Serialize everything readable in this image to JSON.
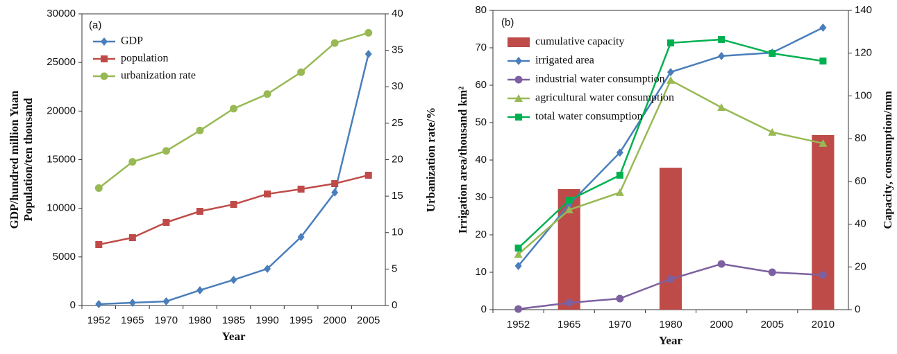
{
  "chart_data": [
    {
      "type": "line",
      "annotation": "(a)",
      "x_label": "Year",
      "y_label": [
        "GDP/hundred million Yuan",
        "Population/ten thousand"
      ],
      "y2_label": "Urbanization rate/%",
      "categories": [
        "1952",
        "1965",
        "1970",
        "1980",
        "1985",
        "1990",
        "1995",
        "2000",
        "2005"
      ],
      "ylim": [
        0,
        30000
      ],
      "yticks": [
        0,
        5000,
        10000,
        15000,
        20000,
        25000,
        30000
      ],
      "y2lim": [
        0,
        40
      ],
      "y2ticks": [
        0,
        5,
        10,
        15,
        20,
        25,
        30,
        35,
        40
      ],
      "legend": "upper-left",
      "series": [
        {
          "name": "GDP",
          "color": "#4a7ebb",
          "marker": "diamond",
          "values": [
            140,
            285,
            430,
            1570,
            2640,
            3780,
            7050,
            11620,
            25870
          ]
        },
        {
          "name": "population",
          "color": "#be4b48",
          "marker": "square",
          "values": [
            6270,
            6980,
            8550,
            9690,
            10400,
            11470,
            11970,
            12540,
            13400
          ]
        },
        {
          "name": "urbanization rate",
          "color": "#98b954",
          "marker": "circle",
          "axis": "y2",
          "values": [
            16.1,
            19.7,
            21.2,
            24,
            27,
            29,
            32,
            36,
            37.4
          ]
        }
      ]
    },
    {
      "type": "combo",
      "annotation": "(b)",
      "x_label": "Year",
      "y_label": [
        "Irrigation area/thousand km²"
      ],
      "y2_label": "Capacity, consumption/mm",
      "categories": [
        "1952",
        "1965",
        "1970",
        "1980",
        "2000",
        "2005",
        "2010"
      ],
      "ylim": [
        0,
        80
      ],
      "yticks": [
        0,
        10,
        20,
        30,
        40,
        50,
        60,
        70,
        80
      ],
      "y2lim": [
        0,
        140
      ],
      "y2ticks": [
        0,
        20,
        40,
        60,
        80,
        100,
        120,
        140
      ],
      "legend": "upper-left",
      "series": [
        {
          "name": "cumulative capacity",
          "color": "#be4b48",
          "kind": "bar",
          "axis": "y2",
          "values": [
            null,
            56.4,
            null,
            66.4,
            null,
            null,
            81.7
          ]
        },
        {
          "name": "irrigated area",
          "color": "#4a7ebb",
          "marker": "diamond",
          "values": [
            11.7,
            28.1,
            42,
            63.5,
            67.8,
            68.7,
            75.4
          ]
        },
        {
          "name": "industrial water consumption",
          "color": "#7d60a0",
          "marker": "circle",
          "axis": "y2",
          "values": [
            0.3,
            3.2,
            5.2,
            14.3,
            21.4,
            17.5,
            16.2
          ]
        },
        {
          "name": "agricultural water consumption",
          "color": "#98b954",
          "marker": "triangle",
          "axis": "y2",
          "values": [
            25.9,
            46.7,
            54.8,
            107.3,
            94.6,
            83,
            77.8
          ]
        },
        {
          "name": "total water consumption",
          "color": "#00b050",
          "marker": "square",
          "axis": "y2",
          "values": [
            28.8,
            51.2,
            62.9,
            124.8,
            126.4,
            119.9,
            116.3
          ]
        }
      ]
    }
  ]
}
